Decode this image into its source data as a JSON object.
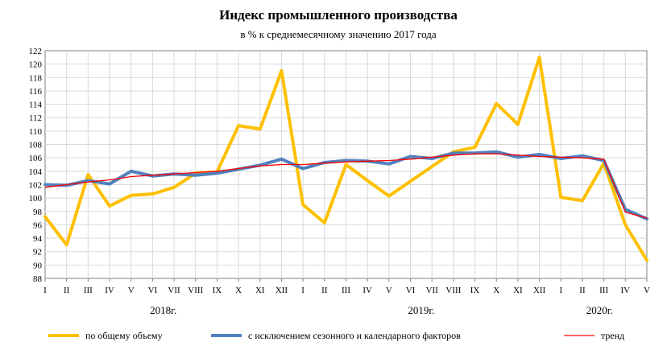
{
  "chart_data": {
    "type": "line",
    "title": "Индекс промышленного производства",
    "subtitle": "в % к среднемесячному значению 2017  года",
    "ylim": [
      88,
      122
    ],
    "yticks": [
      88,
      90,
      92,
      94,
      96,
      98,
      100,
      102,
      104,
      106,
      108,
      110,
      112,
      114,
      116,
      118,
      120,
      122
    ],
    "categories": [
      "I",
      "II",
      "III",
      "IV",
      "V",
      "VI",
      "VII",
      "VIII",
      "IX",
      "X",
      "XI",
      "XII",
      "I",
      "II",
      "III",
      "IV",
      "V",
      "VI",
      "VII",
      "VIII",
      "IX",
      "X",
      "XI",
      "XII",
      "I",
      "II",
      "III",
      "IV",
      "V"
    ],
    "years": [
      {
        "label": "2018г.",
        "center_index": 5.5
      },
      {
        "label": "2019г.",
        "center_index": 17.5
      },
      {
        "label": "2020г.",
        "center_index": 25.8
      }
    ],
    "grid": true,
    "legend_position": "bottom",
    "series": [
      {
        "name": "по общему объему",
        "color": "#ffc000",
        "width": 4,
        "values": [
          97.2,
          93.0,
          103.5,
          98.8,
          100.4,
          100.6,
          101.6,
          103.7,
          103.9,
          110.8,
          110.3,
          119.0,
          99.0,
          96.3,
          105.0,
          102.6,
          100.3,
          102.5,
          104.7,
          106.9,
          107.6,
          114.1,
          111.0,
          121.0,
          100.1,
          99.6,
          105.2,
          96.0,
          90.7
        ]
      },
      {
        "name": "с исключением сезонного и календарного факторов",
        "color": "#4f81bd",
        "width": 4,
        "values": [
          102.0,
          101.9,
          102.6,
          102.1,
          104.0,
          103.3,
          103.6,
          103.4,
          103.7,
          104.3,
          104.9,
          105.8,
          104.4,
          105.3,
          105.6,
          105.5,
          105.1,
          106.2,
          105.9,
          106.7,
          106.7,
          106.9,
          106.1,
          106.5,
          105.9,
          106.3,
          105.6,
          98.3,
          96.9
        ]
      },
      {
        "name": "тренд",
        "color": "#ff0000",
        "width": 1.3,
        "values": [
          101.6,
          102.0,
          102.4,
          102.7,
          103.2,
          103.4,
          103.6,
          103.8,
          104.0,
          104.4,
          104.8,
          105.0,
          105.0,
          105.2,
          105.4,
          105.5,
          105.6,
          105.8,
          106.1,
          106.4,
          106.6,
          106.6,
          106.4,
          106.2,
          106.1,
          106.0,
          105.8,
          97.9,
          97.0
        ]
      }
    ]
  }
}
